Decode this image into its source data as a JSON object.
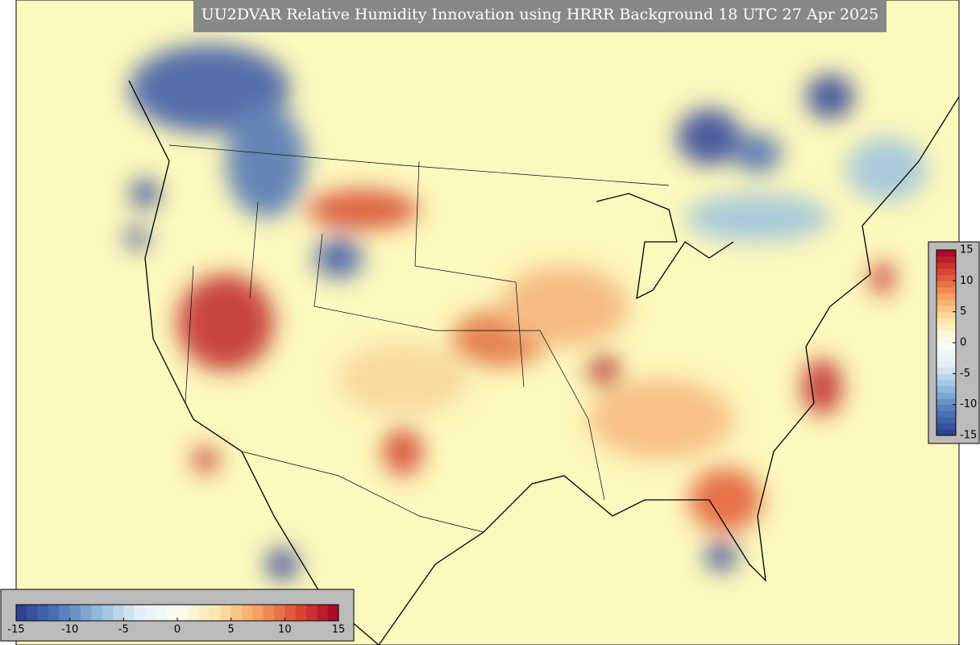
{
  "title": "UU2DVAR Relative Humidity Innovation using HRRR Background 18 UTC 27 Apr 2025",
  "horizontal_colorbar": {
    "range": [
      -15,
      15
    ],
    "ticks": [
      -15,
      -10,
      -5,
      0,
      5,
      10,
      15
    ]
  },
  "vertical_colorbar": {
    "range": [
      -15,
      15
    ],
    "ticks": [
      15,
      10,
      5,
      0,
      -5,
      -10,
      -15
    ]
  }
}
